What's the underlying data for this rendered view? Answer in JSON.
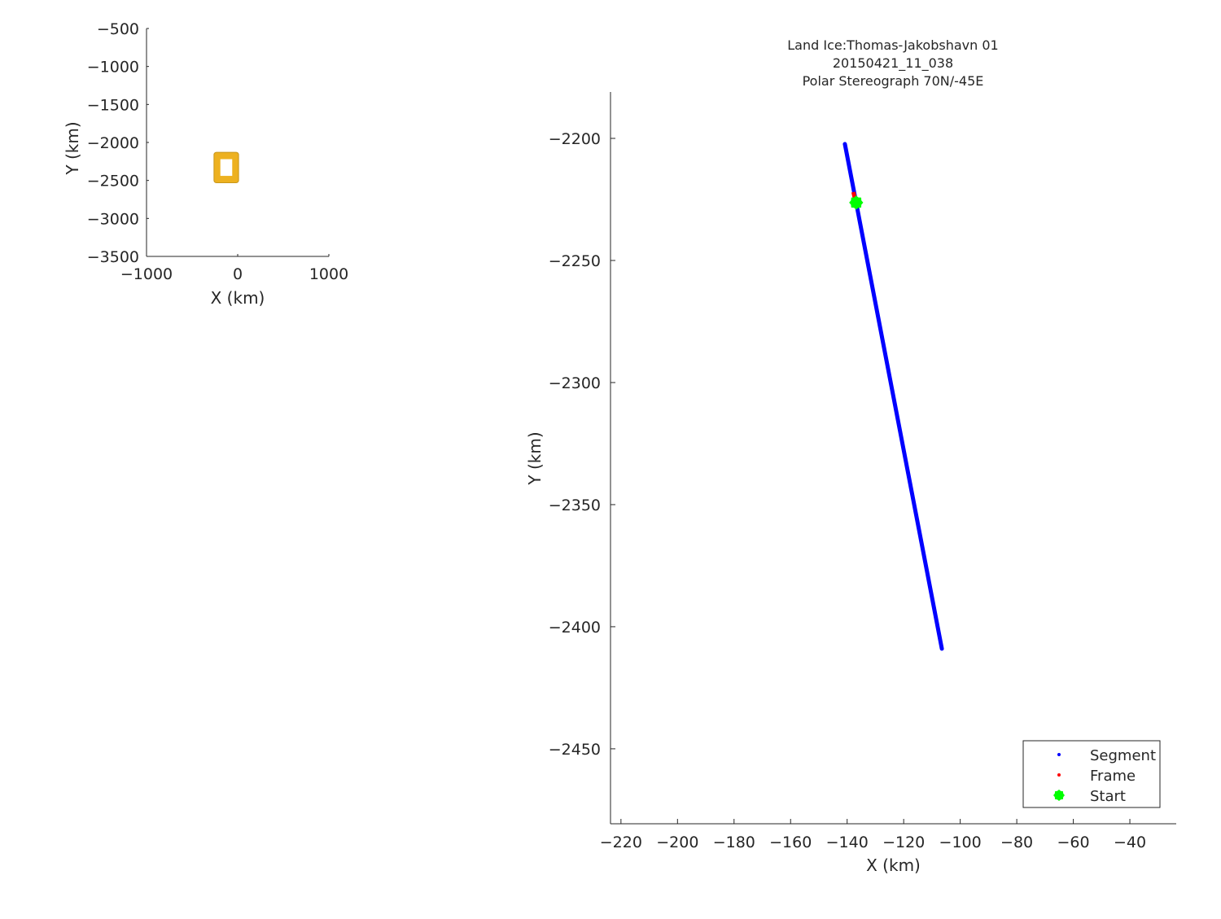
{
  "chart_data": [
    {
      "type": "map-overview",
      "xlabel": "X (km)",
      "ylabel": "Y (km)",
      "xlim": [
        -1000,
        1000
      ],
      "ylim": [
        -3500,
        -500
      ],
      "xticks": [
        -1000,
        0,
        1000
      ],
      "yticks": [
        -500,
        -1000,
        -1500,
        -2000,
        -2500,
        -3000,
        -3500
      ],
      "highlight_box": {
        "x": [
          -260,
          10
        ],
        "y": [
          -2530,
          -2130
        ],
        "inner_x": [
          -190,
          -60
        ],
        "inner_y": [
          -2440,
          -2220
        ],
        "color": "#EDB120"
      }
    },
    {
      "type": "scatter",
      "title": [
        "Land Ice:Thomas-Jakobshavn 01",
        "20150421_11_038",
        "Polar Stereograph 70N/-45E"
      ],
      "xlabel": "X (km)",
      "ylabel": "Y (km)",
      "xlim": [
        -223.7,
        -23.6
      ],
      "ylim": [
        -2480.7,
        -2181
      ],
      "xticks": [
        -220,
        -200,
        -180,
        -160,
        -140,
        -120,
        -100,
        -80,
        -60,
        -40
      ],
      "yticks": [
        -2200,
        -2250,
        -2300,
        -2350,
        -2400,
        -2450
      ],
      "grid": false,
      "legend_placement": "bottom-right",
      "series": [
        {
          "name": "Segment",
          "color": "#0000FF",
          "x": [
            -140.8,
            -106.5
          ],
          "y": [
            -2202.3,
            -2409.0
          ]
        },
        {
          "name": "Frame",
          "color": "#FF0000",
          "x": [
            -137.8,
            -137.0
          ],
          "y": [
            -2222.0,
            -2226.0
          ]
        },
        {
          "name": "Start",
          "color": "#00FF00",
          "x": [
            -136.8
          ],
          "y": [
            -2226.3
          ]
        }
      ]
    }
  ]
}
